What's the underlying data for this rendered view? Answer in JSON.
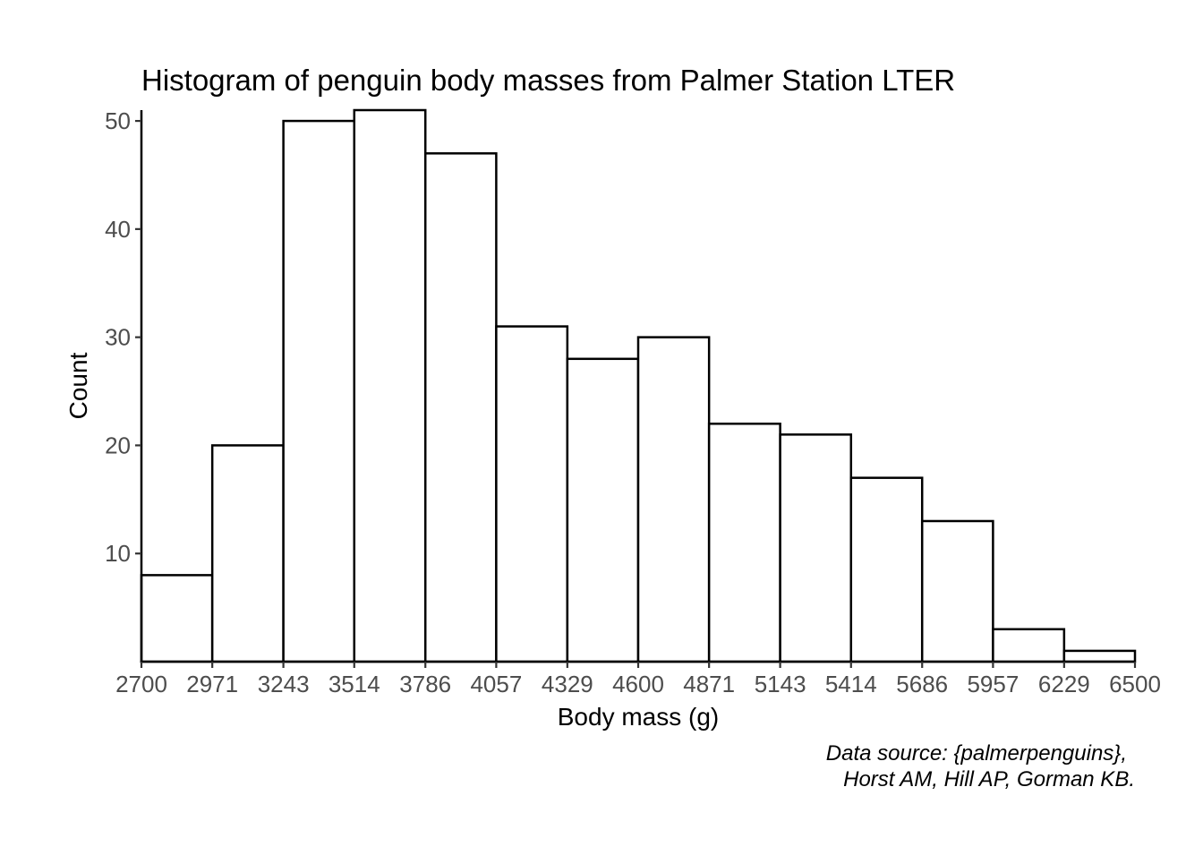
{
  "chart_data": {
    "type": "bar",
    "title": "Histogram of penguin body masses from Palmer Station LTER",
    "xlabel": "Body mass (g)",
    "ylabel": "Count",
    "caption_lines": [
      "Data source: {palmerpenguins},",
      "Horst AM, Hill AP, Gorman KB."
    ],
    "bin_edges": [
      2700,
      2971,
      3243,
      3514,
      3786,
      4057,
      4329,
      4600,
      4871,
      5143,
      5414,
      5686,
      5957,
      6229,
      6500
    ],
    "x_tick_labels": [
      "2700",
      "2971",
      "3243",
      "3514",
      "3786",
      "4057",
      "4329",
      "4600",
      "4871",
      "5143",
      "5414",
      "5686",
      "5957",
      "6229",
      "6500"
    ],
    "counts": [
      8,
      20,
      50,
      51,
      47,
      31,
      28,
      30,
      22,
      21,
      17,
      13,
      3,
      1
    ],
    "y_ticks": [
      10,
      20,
      30,
      40,
      50
    ],
    "y_tick_labels": [
      "10",
      "20",
      "30",
      "40",
      "50"
    ],
    "xlim": [
      2700,
      6500
    ],
    "ylim": [
      0,
      51
    ],
    "grid": false,
    "bar_fill": "#ffffff",
    "bar_stroke": "#000000"
  }
}
